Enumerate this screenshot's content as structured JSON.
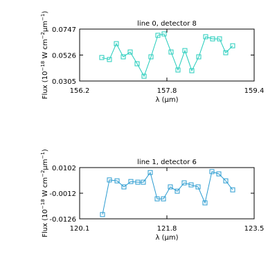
{
  "chart_data": [
    {
      "type": "line",
      "title": "line 0, detector 8",
      "xlabel": "λ (µm)",
      "ylabel": [
        "Flux (10",
        "−18",
        " W cm",
        "−2",
        "µm",
        "−1",
        ")"
      ],
      "color": "#22ccbb",
      "x": [
        156.606,
        156.746,
        156.873,
        157.0,
        157.127,
        157.254,
        157.381,
        157.508,
        157.635,
        157.749,
        157.876,
        158.003,
        158.13,
        158.257,
        158.384,
        158.511,
        158.638,
        158.765,
        158.879,
        159.006
      ],
      "values": [
        0.0505,
        0.0488,
        0.0623,
        0.0511,
        0.0552,
        0.0452,
        0.0346,
        0.0511,
        0.0694,
        0.0706,
        0.0552,
        0.0399,
        0.0564,
        0.0393,
        0.0511,
        0.0682,
        0.0664,
        0.0664,
        0.0546,
        0.0605
      ],
      "xlim": [
        156.2,
        159.4
      ],
      "xticks": [
        156.2,
        157.8,
        159.4
      ],
      "ylim": [
        0.0305,
        0.0747
      ],
      "yticks": [
        0.0305,
        0.0526,
        0.0747
      ]
    },
    {
      "type": "line",
      "title": "line 1, detector 6",
      "xlabel": "λ (µm)",
      "ylabel": [
        "Flux (10",
        "−18",
        " W cm",
        "−2",
        "µm",
        "−1",
        ")"
      ],
      "color": "#2a9bd0",
      "x": [
        120.545,
        120.68,
        120.829,
        120.963,
        121.098,
        121.233,
        121.341,
        121.476,
        121.611,
        121.733,
        121.867,
        122.002,
        122.137,
        122.272,
        122.407,
        122.542,
        122.677,
        122.812,
        122.947,
        123.082
      ],
      "values": [
        -0.0107,
        0.0047,
        0.0043,
        0.0016,
        0.004,
        0.0037,
        0.0037,
        0.008,
        -0.0037,
        -0.0037,
        0.0016,
        -0.0003,
        0.0034,
        0.0025,
        0.0016,
        -0.0055,
        0.0084,
        0.0074,
        0.0043,
        0.0003
      ],
      "xlim": [
        120.1,
        123.5
      ],
      "xticks": [
        120.1,
        121.8,
        123.5
      ],
      "ylim": [
        -0.0126,
        0.0102
      ],
      "yticks": [
        -0.0126,
        -0.0012,
        0.0102
      ]
    }
  ]
}
